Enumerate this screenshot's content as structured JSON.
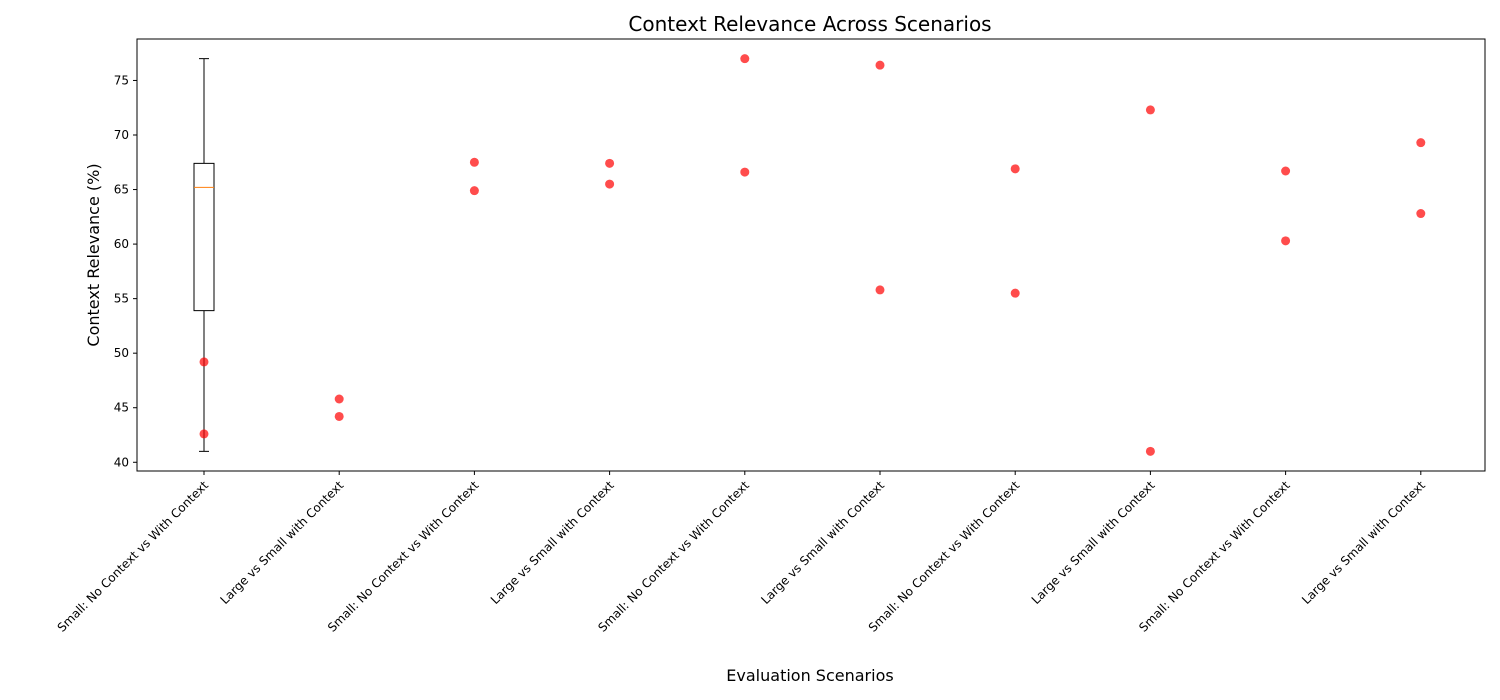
{
  "chart_data": {
    "type": "scatter",
    "title": "Context Relevance Across Scenarios",
    "xlabel": "Evaluation Scenarios",
    "ylabel": "Context Relevance (%)",
    "ylim": [
      39.2,
      78.8
    ],
    "yticks": [
      40,
      45,
      50,
      55,
      60,
      65,
      70,
      75
    ],
    "categories": [
      "Small: No Context vs With Context",
      "Large vs Small with Context",
      "Small: No Context vs With Context",
      "Large vs Small with Context",
      "Small: No Context vs With Context",
      "Large vs Small with Context",
      "Small: No Context vs With Context",
      "Large vs Small with Context",
      "Small: No Context vs With Context",
      "Large vs Small with Context"
    ],
    "points": [
      [
        49.2,
        42.6
      ],
      [
        45.8,
        44.2
      ],
      [
        67.5,
        64.9
      ],
      [
        67.4,
        65.5
      ],
      [
        77.0,
        66.6
      ],
      [
        76.4,
        55.8
      ],
      [
        66.9,
        55.5
      ],
      [
        72.3,
        41.0
      ],
      [
        66.7,
        60.3
      ],
      [
        69.3,
        62.8
      ]
    ],
    "point_color": "#ff0000",
    "boxplot": {
      "position_index": 0,
      "whisker_low": 41.0,
      "q1": 53.9,
      "median": 65.2,
      "q3": 67.4,
      "whisker_high": 77.0,
      "median_color": "#ff7f0e"
    },
    "grid": false,
    "legend": "none"
  }
}
